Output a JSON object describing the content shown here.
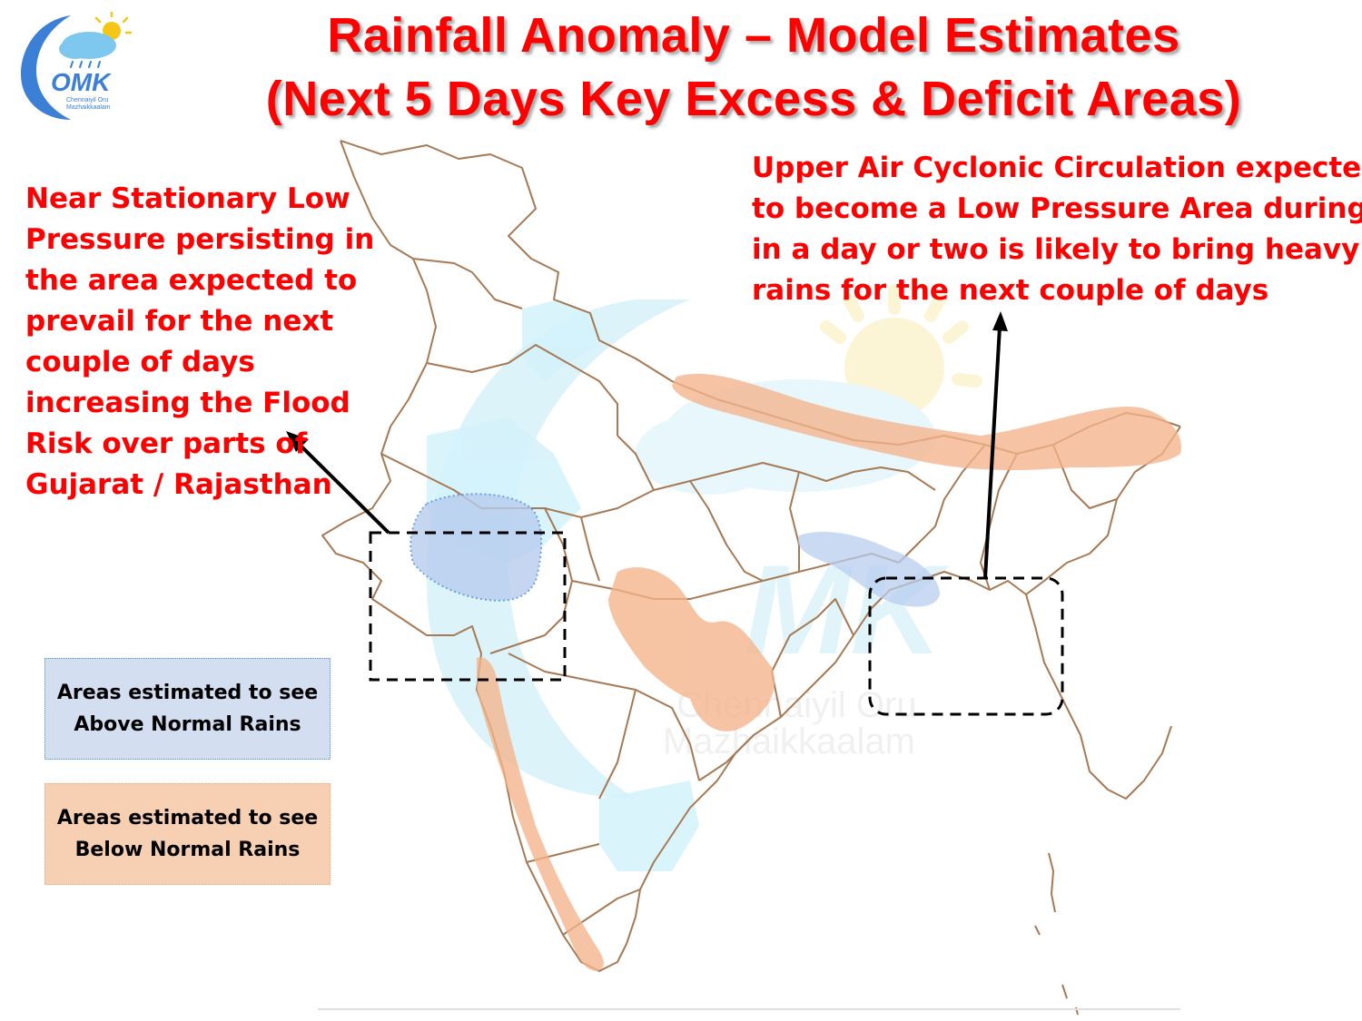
{
  "title": {
    "line1": "Rainfall Anomaly – Model Estimates",
    "line2": "(Next 5 Days Key Excess & Deficit Areas)"
  },
  "logo": {
    "text": "OMK",
    "subtitle1": "Chennaiyil Oru",
    "subtitle2": "Mazhaikkaalam",
    "colors": {
      "crescent": "#3b7fd6",
      "cloud": "#7ec8f0",
      "sun": "#f5c518"
    }
  },
  "annotations": {
    "left": {
      "lines": [
        "Near Stationary Low",
        "Pressure persisting in",
        "the area expected to",
        "prevail for the next",
        "couple of days",
        "increasing the Flood",
        "Risk over parts of",
        "Gujarat / Rajasthan"
      ]
    },
    "right": {
      "lines": [
        "Upper Air Cyclonic Circulation expected",
        "to become a Low Pressure Area during",
        "in a day or two is likely to bring heavy",
        "rains for the next couple of days"
      ]
    }
  },
  "legend": {
    "above": {
      "line1": "Areas estimated to see",
      "line2": "Above Normal Rains",
      "color": "#d3def0"
    },
    "below": {
      "line1": "Areas estimated to see",
      "line2": "Below Normal Rains",
      "color": "#f7cfb2"
    }
  },
  "watermark": {
    "line1": "Chennaiyil Oru",
    "line2": "Mazhaikkaalam"
  },
  "colors": {
    "title": "#ff0000",
    "border": "#a0704a",
    "above": "#b8cdee",
    "below": "#f4b48a"
  }
}
